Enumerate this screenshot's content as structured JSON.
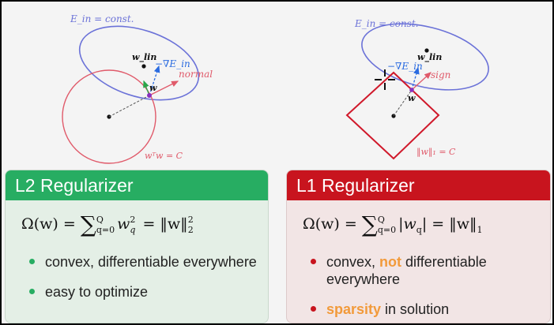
{
  "colors": {
    "l2_header": "#27ad62",
    "l1_header": "#c8141e",
    "l2_box": "#e4efe6",
    "l1_box": "#f2e5e5",
    "emphasis": "#f29a3a",
    "constraint": "#e05a6a",
    "level_set": "#6b72d8",
    "gradient": "#2a6be0"
  },
  "figures": {
    "left": {
      "ein_label": "E_in = const.",
      "wlin_label": "w_lin",
      "grad_label": "−∇E_in",
      "normal_label": "normal",
      "w_label": "w",
      "constraint_label": "wᵀw = C"
    },
    "right": {
      "ein_label": "E_in = const.",
      "wlin_label": "w_lin",
      "grad_label": "−∇E_in",
      "sign_label": "sign",
      "w_label": "w",
      "constraint_label": "‖w‖₁ = C"
    }
  },
  "l2": {
    "title": "L2 Regularizer",
    "formula": {
      "lhs": "Ω(w) = ",
      "sum": "∑",
      "upper": "Q",
      "lower": "q=0",
      "term": "w",
      "term_sup": "2",
      "term_sub": "q",
      "eq": " = ",
      "norm": "‖w‖",
      "norm_sup": "2",
      "norm_sub": "2"
    },
    "bullets": [
      "convex, differentiable everywhere",
      "easy to optimize"
    ]
  },
  "l1": {
    "title": "L1 Regularizer",
    "formula": {
      "lhs": "Ω(w) = ",
      "sum": "∑",
      "upper": "Q",
      "lower": "q=0",
      "term": "|w",
      "term_sub": "q",
      "term_close": "|",
      "eq": " = ",
      "norm": "‖w‖",
      "norm_sub": "1"
    },
    "bullets": [
      {
        "pre": "convex, ",
        "em": "not",
        "post": " differentiable everywhere"
      },
      {
        "pre": "",
        "em": "sparsity",
        "post": " in solution"
      }
    ]
  }
}
